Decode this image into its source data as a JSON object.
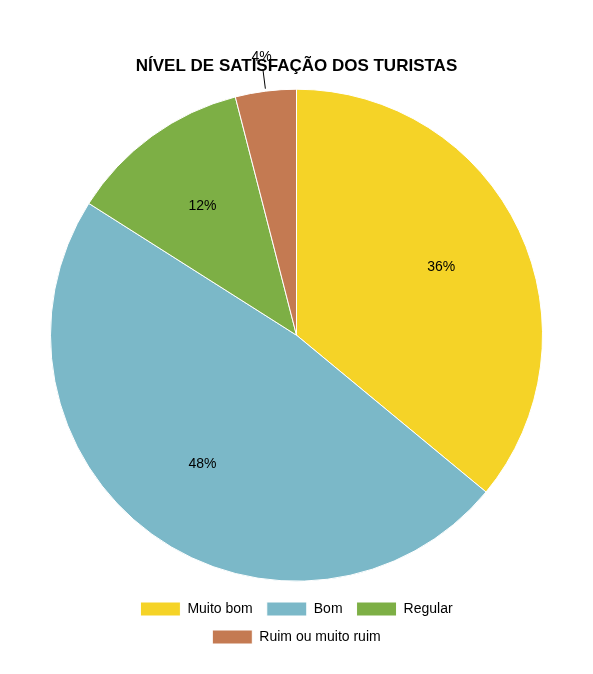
{
  "chart_data": {
    "type": "pie",
    "title": "NÍVEL DE SATISFAÇÃO DOS TURISTAS",
    "categories": [
      "Muito bom",
      "Bom",
      "Regular",
      "Ruim ou muito ruim"
    ],
    "values": [
      36,
      48,
      12,
      4
    ],
    "value_labels": [
      "36%",
      "48%",
      "12%",
      "4%"
    ],
    "colors": [
      "#F5D327",
      "#7BB8C8",
      "#7DAF45",
      "#C47A52"
    ],
    "data_labels": true,
    "legend": "bottom"
  }
}
